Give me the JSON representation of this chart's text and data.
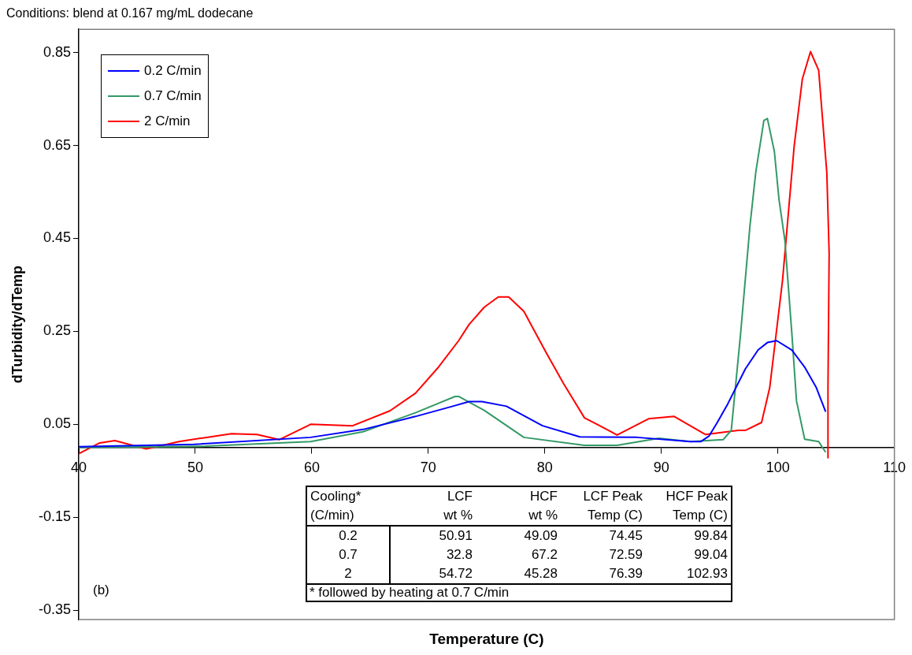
{
  "chart_data": {
    "type": "line",
    "title": "Conditions: blend at 0.167 mg/mL dodecane",
    "xlabel": "Temperature (C)",
    "ylabel": "dTurbidity/dTemp",
    "xlim": [
      40,
      110
    ],
    "xticks": [
      40,
      50,
      60,
      70,
      80,
      90,
      100,
      110
    ],
    "ylim": [
      -0.37,
      0.9
    ],
    "yticks": [
      0.85,
      0.65,
      0.45,
      0.25,
      0.05,
      -0.15,
      -0.35
    ],
    "grid": false,
    "legend": "top left",
    "marker": "none",
    "line_style": "solid",
    "series": [
      {
        "name": "0.2 C/min",
        "color": "#0000ff",
        "x": [
          40,
          49.9,
          59.9,
          64.4,
          68.9,
          72.1,
          73.5,
          74.6,
          76.7,
          79.8,
          83.0,
          87.9,
          92.5,
          93.4,
          94.1,
          94.8,
          95.7,
          97.2,
          98.3,
          99.1,
          99.9,
          101.2,
          102.3,
          103.3,
          104.1
        ],
        "values": [
          0.002,
          0.007,
          0.022,
          0.039,
          0.067,
          0.089,
          0.099,
          0.099,
          0.089,
          0.047,
          0.023,
          0.022,
          0.013,
          0.013,
          0.025,
          0.054,
          0.094,
          0.169,
          0.21,
          0.226,
          0.23,
          0.21,
          0.173,
          0.129,
          0.077
        ]
      },
      {
        "name": "0.7 C/min",
        "color": "#339966",
        "x": [
          40,
          50.9,
          59.9,
          64.4,
          68.9,
          72.3,
          72.6,
          74.8,
          78.2,
          83.4,
          86.2,
          89.8,
          92.5,
          95.3,
          96.0,
          96.8,
          97.6,
          98.1,
          98.8,
          99.1,
          99.7,
          100.1,
          100.6,
          101.2,
          101.6,
          102.3,
          103.5,
          104.1
        ],
        "values": [
          0.0,
          0.003,
          0.013,
          0.034,
          0.075,
          0.11,
          0.11,
          0.08,
          0.022,
          0.005,
          0.005,
          0.02,
          0.013,
          0.017,
          0.037,
          0.245,
          0.476,
          0.592,
          0.704,
          0.708,
          0.637,
          0.533,
          0.446,
          0.245,
          0.1,
          0.018,
          0.013,
          -0.01
        ]
      },
      {
        "name": "2 C/min",
        "color": "#ff0000",
        "x": [
          40,
          41.8,
          43.1,
          45.8,
          48.6,
          53.1,
          55.3,
          57.2,
          59.9,
          63.5,
          66.7,
          68.9,
          70.8,
          72.6,
          73.5,
          74.8,
          76.0,
          76.9,
          78.2,
          80.1,
          81.6,
          83.4,
          85.7,
          86.2,
          88.9,
          91.1,
          93.8,
          96.6,
          97.2,
          98.6,
          99.3,
          100.4,
          101.4,
          102.1,
          102.8,
          103.5,
          104.2,
          104.4,
          104.3,
          104.3
        ],
        "values": [
          -0.013,
          0.01,
          0.015,
          -0.003,
          0.013,
          0.03,
          0.028,
          0.017,
          0.05,
          0.047,
          0.079,
          0.117,
          0.171,
          0.23,
          0.265,
          0.302,
          0.324,
          0.324,
          0.293,
          0.205,
          0.138,
          0.064,
          0.034,
          0.027,
          0.062,
          0.067,
          0.028,
          0.037,
          0.037,
          0.054,
          0.129,
          0.36,
          0.649,
          0.793,
          0.852,
          0.812,
          0.592,
          0.418,
          0.129,
          -0.022
        ]
      }
    ],
    "annotations": [
      "(b)",
      "Cooling*",
      "LCF",
      "HCF",
      "LCF Peak",
      "HCF Peak",
      "(C/min)",
      "wt %",
      "wt %",
      "Temp (C)",
      "Temp (C)",
      "0.2",
      "50.91",
      "49.09",
      "74.45",
      "99.84",
      "0.7",
      "32.8",
      "67.2",
      "72.59",
      "99.04",
      "2",
      "54.72",
      "45.28",
      "76.39",
      "102.93",
      "* followed by heating at 0.7 C/min"
    ]
  }
}
